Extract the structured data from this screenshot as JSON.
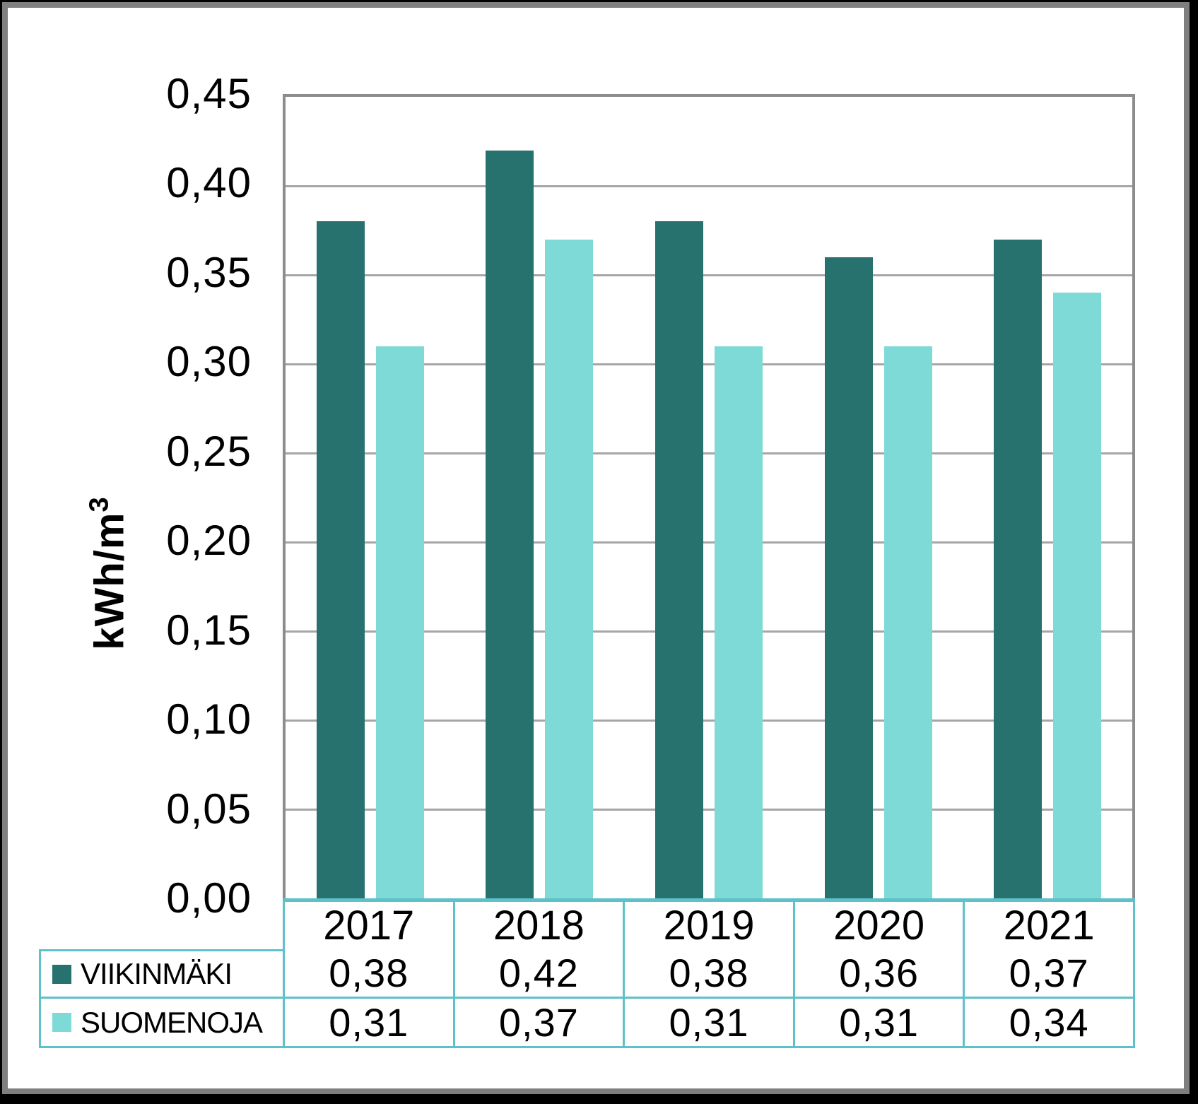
{
  "chart_data": {
    "type": "bar",
    "title": "",
    "categories": [
      "2017",
      "2018",
      "2019",
      "2020",
      "2021"
    ],
    "series": [
      {
        "name": "VIIKINMÄKI",
        "color": "#27716f",
        "values": [
          0.38,
          0.42,
          0.38,
          0.36,
          0.37
        ],
        "display_values": [
          "0,38",
          "0,42",
          "0,38",
          "0,36",
          "0,37"
        ]
      },
      {
        "name": "SUOMENOJA",
        "color": "#7edad6",
        "values": [
          0.31,
          0.37,
          0.31,
          0.31,
          0.34
        ],
        "display_values": [
          "0,31",
          "0,37",
          "0,31",
          "0,31",
          "0,34"
        ]
      }
    ],
    "ylabel_base": "kWh/m",
    "ylabel_sup": "3",
    "ylim": [
      0,
      0.45
    ],
    "ytick_step": 0.05,
    "ytick_labels": [
      "0,45",
      "0,40",
      "0,35",
      "0,30",
      "0,25",
      "0,20",
      "0,15",
      "0,10",
      "0,05",
      "0,00"
    ],
    "grid": true,
    "legend_position": "table-left-column",
    "decimal_separator": ","
  },
  "colors": {
    "bar_dark": "#27716f",
    "bar_light": "#7edad6",
    "table_border": "#5ec1ca",
    "gridline": "#a6a6a6",
    "plot_border": "#8c8c8c",
    "frame_border": "#7f7f7f",
    "outer_frame": "#000000",
    "background": "#ffffff",
    "text": "#000000"
  }
}
